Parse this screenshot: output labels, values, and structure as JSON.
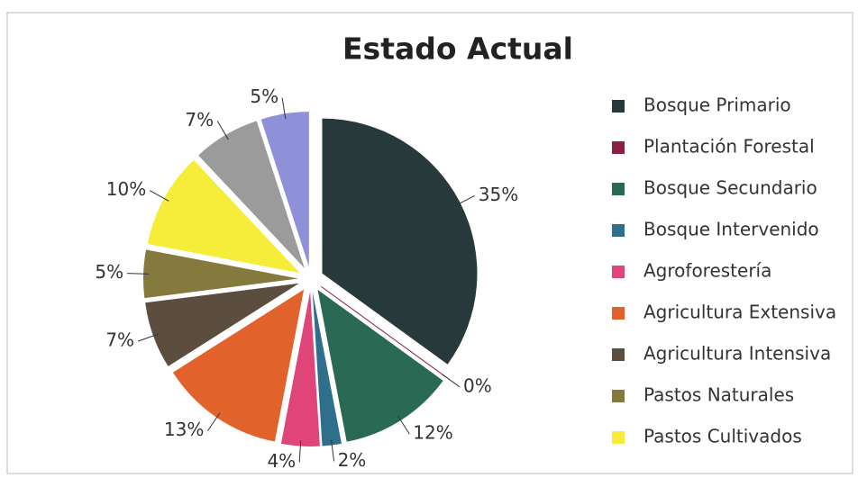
{
  "chart_data": {
    "type": "pie",
    "title": "Estado Actual",
    "categories": [
      "Bosque Primario",
      "Plantación Forestal",
      "Bosque Secundario",
      "Bosque Intervenido",
      "Agroforestería",
      "Agricultura Extensiva",
      "Agricultura Intensiva",
      "Pastos Naturales",
      "Pastos Cultivados",
      null,
      null
    ],
    "values": [
      35,
      0,
      12,
      2,
      4,
      13,
      7,
      5,
      10,
      7,
      5
    ],
    "value_labels": [
      "35%",
      "0%",
      "12%",
      "2%",
      "4%",
      "13%",
      "7%",
      "5%",
      "10%",
      "7%",
      "5%"
    ],
    "colors": [
      "#27393a",
      "#8b2040",
      "#2a6a55",
      "#2f6f8c",
      "#e0457a",
      "#e2622c",
      "#5c4e3e",
      "#847a3e",
      "#f6ec3a",
      "#9b9b9b",
      "#8e90d8"
    ],
    "legend": "right"
  }
}
